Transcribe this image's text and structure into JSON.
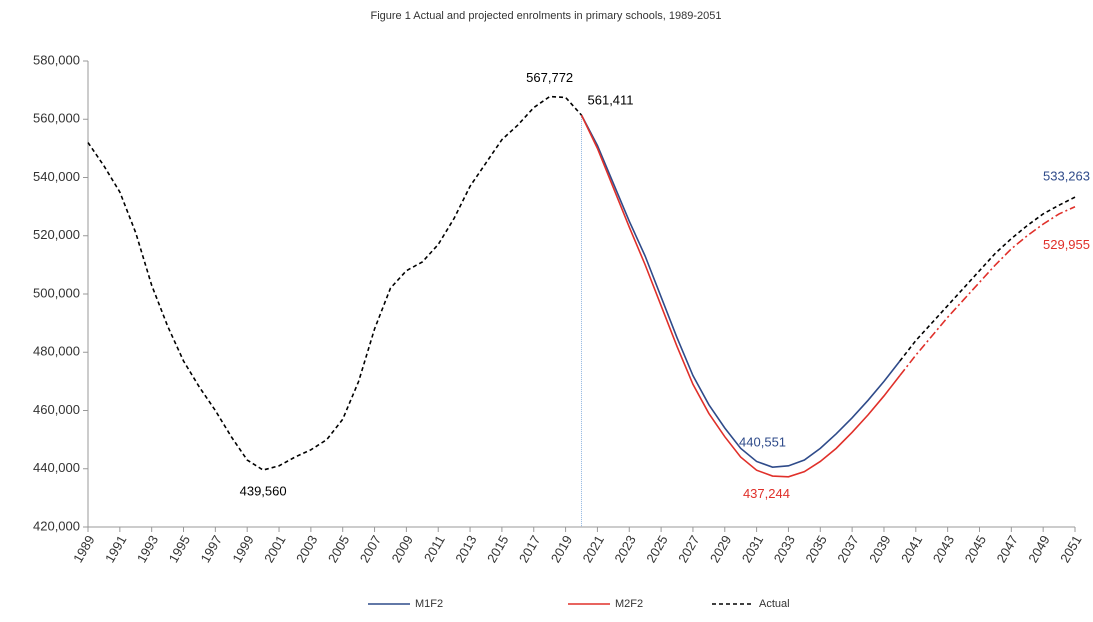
{
  "chart_data": {
    "type": "line",
    "title": "Figure 1 Actual and projected enrolments in primary schools, 1989-2051",
    "xlim": [
      1989,
      2051
    ],
    "xticks": [
      1989,
      1991,
      1993,
      1995,
      1997,
      1999,
      2001,
      2003,
      2005,
      2007,
      2009,
      2011,
      2013,
      2015,
      2017,
      2019,
      2021,
      2023,
      2025,
      2027,
      2029,
      2031,
      2033,
      2035,
      2037,
      2039,
      2041,
      2043,
      2045,
      2047,
      2049,
      2051
    ],
    "ylim": [
      420000,
      580000
    ],
    "yticks": [
      {
        "value": 420000,
        "label": "420,000"
      },
      {
        "value": 440000,
        "label": "440,000"
      },
      {
        "value": 460000,
        "label": "460,000"
      },
      {
        "value": 480000,
        "label": "480,000"
      },
      {
        "value": 500000,
        "label": "500,000"
      },
      {
        "value": 520000,
        "label": "520,000"
      },
      {
        "value": 540000,
        "label": "540,000"
      },
      {
        "value": 560000,
        "label": "560,000"
      },
      {
        "value": 580000,
        "label": "580,000"
      }
    ],
    "grid": false,
    "divider_x": 2020,
    "legend": "bottom",
    "series": [
      {
        "name": "M1F2",
        "color": "#2f4b8a",
        "dash_from": 2040,
        "dash_color": "#000000",
        "x": [
          2020,
          2021,
          2022,
          2023,
          2024,
          2025,
          2026,
          2027,
          2028,
          2029,
          2030,
          2031,
          2032,
          2033,
          2034,
          2035,
          2036,
          2037,
          2038,
          2039,
          2040,
          2041,
          2042,
          2043,
          2044,
          2045,
          2046,
          2047,
          2048,
          2049,
          2050,
          2051
        ],
        "values": [
          561411,
          551000,
          538000,
          525000,
          513000,
          499000,
          485000,
          472000,
          462000,
          454000,
          447000,
          442500,
          440551,
          441000,
          443000,
          447000,
          452000,
          457500,
          463500,
          470000,
          477000,
          484000,
          490000,
          496000,
          502000,
          508000,
          514000,
          519000,
          523500,
          527500,
          530500,
          533263
        ],
        "value_labels": [
          null,
          null,
          null,
          null,
          null,
          null,
          null,
          null,
          null,
          null,
          null,
          null,
          "440,551",
          null,
          null,
          null,
          null,
          null,
          null,
          null,
          null,
          null,
          null,
          null,
          null,
          null,
          null,
          null,
          null,
          null,
          null,
          "533,263"
        ]
      },
      {
        "name": "M2F2",
        "color": "#e0302a",
        "dash_from": 2040,
        "dash_color": "#e0302a",
        "x": [
          2020,
          2021,
          2022,
          2023,
          2024,
          2025,
          2026,
          2027,
          2028,
          2029,
          2030,
          2031,
          2032,
          2033,
          2034,
          2035,
          2036,
          2037,
          2038,
          2039,
          2040,
          2041,
          2042,
          2043,
          2044,
          2045,
          2046,
          2047,
          2048,
          2049,
          2050,
          2051
        ],
        "values": [
          561411,
          550000,
          536500,
          523000,
          510000,
          496000,
          482000,
          469000,
          459000,
          451000,
          444000,
          439500,
          437500,
          437244,
          439000,
          442500,
          447000,
          452500,
          458500,
          465000,
          472000,
          479000,
          485500,
          492000,
          498000,
          504000,
          510000,
          515500,
          520000,
          524000,
          527500,
          529955
        ],
        "value_labels": [
          null,
          null,
          null,
          null,
          null,
          null,
          null,
          null,
          null,
          null,
          null,
          null,
          null,
          "437,244",
          null,
          null,
          null,
          null,
          null,
          null,
          null,
          null,
          null,
          null,
          null,
          null,
          null,
          null,
          null,
          null,
          null,
          "529,955"
        ]
      },
      {
        "name": "Actual",
        "color": "#000000",
        "dashed": true,
        "x": [
          1989,
          1990,
          1991,
          1992,
          1993,
          1994,
          1995,
          1996,
          1997,
          1998,
          1999,
          2000,
          2001,
          2002,
          2003,
          2004,
          2005,
          2006,
          2007,
          2008,
          2009,
          2010,
          2011,
          2012,
          2013,
          2014,
          2015,
          2016,
          2017,
          2018,
          2019,
          2020
        ],
        "values": [
          552000,
          544000,
          535000,
          521000,
          503000,
          489000,
          477000,
          468000,
          460000,
          451000,
          443000,
          439560,
          441000,
          444000,
          446500,
          450000,
          457000,
          470000,
          488000,
          502000,
          508000,
          511000,
          517000,
          526000,
          537000,
          545000,
          553000,
          558000,
          564000,
          567772,
          567500,
          561411
        ],
        "value_labels": [
          null,
          null,
          null,
          null,
          null,
          null,
          null,
          null,
          null,
          null,
          null,
          "439,560",
          null,
          null,
          null,
          null,
          null,
          null,
          null,
          null,
          null,
          null,
          null,
          null,
          null,
          null,
          null,
          null,
          null,
          "567,772",
          null,
          "561,411"
        ]
      }
    ]
  }
}
